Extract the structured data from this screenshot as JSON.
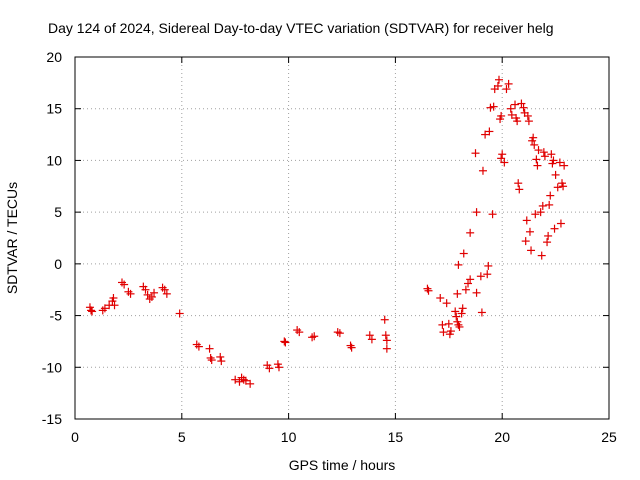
{
  "chart_data": {
    "type": "scatter",
    "title": "Day 124 of 2024, Sidereal Day-to-day VTEC variation (SDTVAR) for receiver helg",
    "xlabel": "GPS time / hours",
    "ylabel": "SDTVAR / TECUs",
    "xlim": [
      0,
      25
    ],
    "ylim": [
      -15,
      20
    ],
    "xticks": [
      0,
      5,
      10,
      15,
      20,
      25
    ],
    "yticks": [
      -15,
      -10,
      -5,
      0,
      5,
      10,
      15,
      20
    ],
    "grid": true,
    "marker": "+",
    "color": "#e00000",
    "series": [
      {
        "name": "SDTVAR",
        "points": [
          [
            0.7,
            -4.2
          ],
          [
            0.75,
            -4.5
          ],
          [
            0.8,
            -4.6
          ],
          [
            1.3,
            -4.5
          ],
          [
            1.4,
            -4.3
          ],
          [
            1.6,
            -4.0
          ],
          [
            1.75,
            -3.6
          ],
          [
            1.8,
            -3.3
          ],
          [
            1.85,
            -4.0
          ],
          [
            2.2,
            -1.8
          ],
          [
            2.3,
            -2.0
          ],
          [
            2.5,
            -2.7
          ],
          [
            2.6,
            -2.9
          ],
          [
            3.2,
            -2.2
          ],
          [
            3.3,
            -2.5
          ],
          [
            3.4,
            -3.0
          ],
          [
            3.5,
            -3.4
          ],
          [
            3.6,
            -3.2
          ],
          [
            3.7,
            -2.8
          ],
          [
            4.1,
            -2.3
          ],
          [
            4.2,
            -2.5
          ],
          [
            4.3,
            -2.9
          ],
          [
            4.9,
            -4.8
          ],
          [
            5.7,
            -7.8
          ],
          [
            5.8,
            -8.0
          ],
          [
            6.3,
            -8.2
          ],
          [
            6.35,
            -9.1
          ],
          [
            6.4,
            -9.3
          ],
          [
            6.8,
            -9.0
          ],
          [
            6.85,
            -9.4
          ],
          [
            7.5,
            -11.2
          ],
          [
            7.7,
            -11.4
          ],
          [
            7.8,
            -11.0
          ],
          [
            7.9,
            -11.2
          ],
          [
            8.0,
            -11.3
          ],
          [
            8.2,
            -11.6
          ],
          [
            9.0,
            -9.8
          ],
          [
            9.1,
            -10.1
          ],
          [
            9.5,
            -9.7
          ],
          [
            9.55,
            -10.0
          ],
          [
            9.8,
            -7.5
          ],
          [
            9.85,
            -7.6
          ],
          [
            10.4,
            -6.4
          ],
          [
            10.5,
            -6.6
          ],
          [
            11.1,
            -7.1
          ],
          [
            11.2,
            -7.0
          ],
          [
            12.3,
            -6.6
          ],
          [
            12.4,
            -6.7
          ],
          [
            12.9,
            -7.9
          ],
          [
            12.95,
            -8.1
          ],
          [
            13.8,
            -6.9
          ],
          [
            13.9,
            -7.3
          ],
          [
            14.5,
            -5.4
          ],
          [
            14.55,
            -6.9
          ],
          [
            14.6,
            -7.4
          ],
          [
            14.6,
            -8.2
          ],
          [
            16.5,
            -2.4
          ],
          [
            16.55,
            -2.6
          ],
          [
            17.1,
            -3.3
          ],
          [
            17.2,
            -5.9
          ],
          [
            17.25,
            -6.6
          ],
          [
            17.4,
            -3.8
          ],
          [
            17.5,
            -5.8
          ],
          [
            17.55,
            -6.8
          ],
          [
            17.6,
            -6.5
          ],
          [
            17.8,
            -4.6
          ],
          [
            17.85,
            -5.1
          ],
          [
            17.9,
            -5.6
          ],
          [
            17.95,
            -5.9
          ],
          [
            18.0,
            -6.1
          ],
          [
            17.9,
            -2.9
          ],
          [
            17.95,
            -0.1
          ],
          [
            18.1,
            -4.8
          ],
          [
            18.15,
            -4.3
          ],
          [
            18.2,
            1.0
          ],
          [
            18.3,
            -2.5
          ],
          [
            18.4,
            -1.9
          ],
          [
            18.5,
            -1.5
          ],
          [
            18.5,
            3.0
          ],
          [
            18.8,
            -2.8
          ],
          [
            18.8,
            5.0
          ],
          [
            18.75,
            10.7
          ],
          [
            19.0,
            -1.2
          ],
          [
            19.05,
            -4.7
          ],
          [
            19.1,
            9.0
          ],
          [
            19.2,
            12.5
          ],
          [
            19.3,
            -1.0
          ],
          [
            19.35,
            -0.2
          ],
          [
            19.4,
            12.8
          ],
          [
            19.45,
            15.1
          ],
          [
            19.55,
            4.8
          ],
          [
            19.6,
            15.2
          ],
          [
            19.65,
            16.9
          ],
          [
            19.8,
            17.2
          ],
          [
            19.85,
            17.8
          ],
          [
            19.9,
            14.0
          ],
          [
            19.95,
            14.3
          ],
          [
            19.95,
            10.2
          ],
          [
            20.0,
            10.6
          ],
          [
            20.1,
            9.8
          ],
          [
            20.2,
            16.9
          ],
          [
            20.3,
            17.4
          ],
          [
            20.4,
            15.0
          ],
          [
            20.45,
            14.4
          ],
          [
            20.6,
            15.4
          ],
          [
            20.65,
            14.1
          ],
          [
            20.7,
            13.8
          ],
          [
            20.75,
            7.8
          ],
          [
            20.8,
            7.2
          ],
          [
            20.9,
            15.5
          ],
          [
            21.0,
            15.1
          ],
          [
            21.05,
            14.6
          ],
          [
            21.1,
            2.2
          ],
          [
            21.15,
            4.2
          ],
          [
            21.2,
            14.3
          ],
          [
            21.25,
            13.8
          ],
          [
            21.3,
            3.1
          ],
          [
            21.35,
            1.3
          ],
          [
            21.4,
            11.9
          ],
          [
            21.45,
            12.2
          ],
          [
            21.5,
            11.5
          ],
          [
            21.55,
            4.8
          ],
          [
            21.6,
            10.1
          ],
          [
            21.65,
            9.5
          ],
          [
            21.7,
            11.0
          ],
          [
            21.8,
            5.0
          ],
          [
            21.85,
            0.8
          ],
          [
            21.9,
            5.6
          ],
          [
            21.95,
            10.8
          ],
          [
            22.0,
            10.4
          ],
          [
            22.1,
            2.1
          ],
          [
            22.15,
            2.7
          ],
          [
            22.2,
            5.7
          ],
          [
            22.25,
            6.6
          ],
          [
            22.3,
            10.6
          ],
          [
            22.35,
            9.7
          ],
          [
            22.4,
            10.0
          ],
          [
            22.45,
            3.4
          ],
          [
            22.5,
            8.6
          ],
          [
            22.6,
            7.4
          ],
          [
            22.7,
            9.8
          ],
          [
            22.75,
            3.9
          ],
          [
            22.8,
            7.8
          ],
          [
            22.85,
            7.5
          ],
          [
            22.9,
            9.5
          ]
        ]
      }
    ]
  }
}
